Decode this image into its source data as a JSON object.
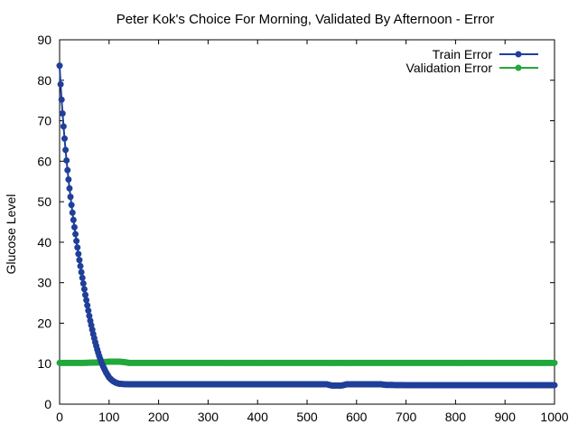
{
  "chart_data": {
    "type": "line",
    "title": "Peter Kok's Choice For Morning, Validated By Afternoon - Error",
    "xlabel": "",
    "ylabel": "Glucose Level",
    "xlim": [
      0,
      1000
    ],
    "ylim": [
      0,
      90
    ],
    "x_ticks": [
      0,
      100,
      200,
      300,
      400,
      500,
      600,
      700,
      800,
      900,
      1000
    ],
    "y_ticks": [
      0,
      10,
      20,
      30,
      40,
      50,
      60,
      70,
      80,
      90
    ],
    "grid": false,
    "legend_position": "top-right",
    "markers": "circle",
    "series": [
      {
        "name": "Train Error",
        "color": "#1f3f99",
        "points": [
          [
            0,
            83.6
          ],
          [
            2,
            79.0
          ],
          [
            4,
            75.2
          ],
          [
            6,
            71.8
          ],
          [
            8,
            68.6
          ],
          [
            10,
            65.6
          ],
          [
            12,
            62.8
          ],
          [
            14,
            60.2
          ],
          [
            16,
            57.8
          ],
          [
            18,
            55.5
          ],
          [
            20,
            53.3
          ],
          [
            22,
            51.2
          ],
          [
            24,
            49.2
          ],
          [
            26,
            47.3
          ],
          [
            28,
            45.5
          ],
          [
            30,
            43.7
          ],
          [
            32,
            42.0
          ],
          [
            34,
            40.3
          ],
          [
            36,
            38.7
          ],
          [
            38,
            37.1
          ],
          [
            40,
            35.6
          ],
          [
            42,
            34.1
          ],
          [
            44,
            32.6
          ],
          [
            46,
            31.2
          ],
          [
            48,
            29.8
          ],
          [
            50,
            28.4
          ],
          [
            52,
            27.0
          ],
          [
            54,
            25.7
          ],
          [
            56,
            24.4
          ],
          [
            58,
            23.1
          ],
          [
            60,
            21.8
          ],
          [
            62,
            20.6
          ],
          [
            64,
            19.5
          ],
          [
            66,
            18.4
          ],
          [
            68,
            17.3
          ],
          [
            70,
            16.3
          ],
          [
            72,
            15.3
          ],
          [
            74,
            14.4
          ],
          [
            76,
            13.5
          ],
          [
            78,
            12.7
          ],
          [
            80,
            11.9
          ],
          [
            82,
            11.2
          ],
          [
            84,
            10.5
          ],
          [
            86,
            9.9
          ],
          [
            88,
            9.3
          ],
          [
            90,
            8.8
          ],
          [
            92,
            8.3
          ],
          [
            94,
            7.8
          ],
          [
            96,
            7.4
          ],
          [
            98,
            7.0
          ],
          [
            100,
            6.6
          ],
          [
            104,
            6.1
          ],
          [
            108,
            5.7
          ],
          [
            112,
            5.4
          ],
          [
            116,
            5.2
          ],
          [
            120,
            5.05
          ],
          [
            130,
            4.95
          ],
          [
            140,
            4.92
          ],
          [
            160,
            4.9
          ],
          [
            200,
            4.9
          ],
          [
            300,
            4.9
          ],
          [
            400,
            4.9
          ],
          [
            500,
            4.9
          ],
          [
            540,
            4.9
          ],
          [
            550,
            4.6
          ],
          [
            570,
            4.6
          ],
          [
            580,
            4.9
          ],
          [
            650,
            4.9
          ],
          [
            660,
            4.75
          ],
          [
            700,
            4.7
          ],
          [
            800,
            4.7
          ],
          [
            900,
            4.7
          ],
          [
            1000,
            4.7
          ]
        ]
      },
      {
        "name": "Validation Error",
        "color": "#22a83a",
        "points": [
          [
            0,
            10.2
          ],
          [
            50,
            10.2
          ],
          [
            80,
            10.3
          ],
          [
            90,
            10.4
          ],
          [
            100,
            10.5
          ],
          [
            120,
            10.5
          ],
          [
            130,
            10.4
          ],
          [
            140,
            10.2
          ],
          [
            200,
            10.2
          ],
          [
            300,
            10.2
          ],
          [
            400,
            10.2
          ],
          [
            500,
            10.2
          ],
          [
            600,
            10.2
          ],
          [
            700,
            10.2
          ],
          [
            800,
            10.2
          ],
          [
            900,
            10.2
          ],
          [
            1000,
            10.2
          ]
        ]
      }
    ]
  }
}
